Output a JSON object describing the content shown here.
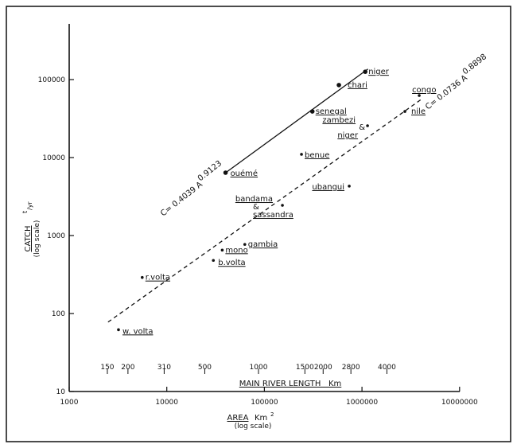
{
  "chart_data": {
    "type": "scatter",
    "x_scale": "log",
    "y_scale": "log",
    "xlim": [
      1000,
      10000000
    ],
    "ylim": [
      10,
      300000
    ],
    "grid": false,
    "xlabel": "AREA",
    "xlabel_unit": "Km",
    "xlabel_unit_exp": "2",
    "xlabel_note": "(log scale)",
    "ylabel": "CATCH",
    "ylabel_unit": "t/yr",
    "ylabel_unit_t": "t",
    "ylabel_unit_yr": "/yr",
    "ylabel_note": "(log scale)",
    "x_ticks": [
      {
        "value": 1000,
        "label": "1000"
      },
      {
        "value": 10000,
        "label": "10000"
      },
      {
        "value": 100000,
        "label": "100000"
      },
      {
        "value": 1000000,
        "label": "1000000"
      },
      {
        "value": 10000000,
        "label": "10000000"
      }
    ],
    "y_ticks": [
      {
        "value": 10,
        "label": "10"
      },
      {
        "value": 100,
        "label": "100"
      },
      {
        "value": 1000,
        "label": "1000"
      },
      {
        "value": 10000,
        "label": "10000"
      },
      {
        "value": 100000,
        "label": "100000"
      }
    ],
    "secondary_axis": {
      "label": "MAIN RIVER LENGTH   Km",
      "ticks": [
        {
          "label": "150",
          "area_equivalent": 2460
        },
        {
          "label": "200",
          "area_equivalent": 4000
        },
        {
          "label": "310",
          "area_equivalent": 9400
        },
        {
          "label": "500",
          "area_equivalent": 24500
        },
        {
          "label": "1000",
          "area_equivalent": 87000
        },
        {
          "label": "1500",
          "area_equivalent": 260000
        },
        {
          "label": "2000",
          "area_equivalent": 400000
        },
        {
          "label": "2800",
          "area_equivalent": 770000
        },
        {
          "label": "4000",
          "area_equivalent": 1800000
        }
      ]
    },
    "points": [
      {
        "name": "niger",
        "x": 1080000,
        "y": 126000,
        "group": "solid"
      },
      {
        "name": "chari",
        "x": 580000,
        "y": 85000,
        "group": "solid"
      },
      {
        "name": "senegal",
        "x": 310000,
        "y": 39000,
        "group": "solid"
      },
      {
        "name": "ouémé",
        "x": 40000,
        "y": 6400,
        "group": "solid"
      },
      {
        "name": "benue",
        "x": 240000,
        "y": 11000,
        "group": "dashed"
      },
      {
        "name": "zambezi & niger",
        "lines": [
          "zambezi",
          "&",
          "niger"
        ],
        "x": 1140000,
        "y": 25600,
        "group": "dashed"
      },
      {
        "name": "congo",
        "x": 3860000,
        "y": 62500,
        "group": "dashed"
      },
      {
        "name": "nile",
        "x": 2750000,
        "y": 39000,
        "group": "dashed"
      },
      {
        "name": "ubangui",
        "x": 740000,
        "y": 4300,
        "group": "dashed"
      },
      {
        "name": "bandama & sassandra",
        "lines": [
          "bandama",
          "&",
          "sassandra"
        ],
        "x": 153000,
        "y": 2440,
        "group": "dashed"
      },
      {
        "name": "gambia",
        "x": 63000,
        "y": 770,
        "group": "dashed"
      },
      {
        "name": "mono",
        "x": 37000,
        "y": 650,
        "group": "dashed"
      },
      {
        "name": "b.volta",
        "x": 30000,
        "y": 480,
        "group": "dashed"
      },
      {
        "name": "r.volta",
        "x": 5600,
        "y": 290,
        "group": "dashed"
      },
      {
        "name": "w. volta",
        "x": 3200,
        "y": 62,
        "group": "dashed"
      }
    ],
    "fits": [
      {
        "style": "solid",
        "equation": "C= 0.4039 A",
        "exponent": "0.9123",
        "coef": 0.4039,
        "power": 0.9123,
        "x_range": [
          40000,
          1150000
        ]
      },
      {
        "style": "dashed",
        "equation": "C= 0.0736 A",
        "exponent": "0.8898",
        "coef": 0.0736,
        "power": 0.8898,
        "x_range": [
          2500,
          4000000
        ]
      }
    ]
  }
}
